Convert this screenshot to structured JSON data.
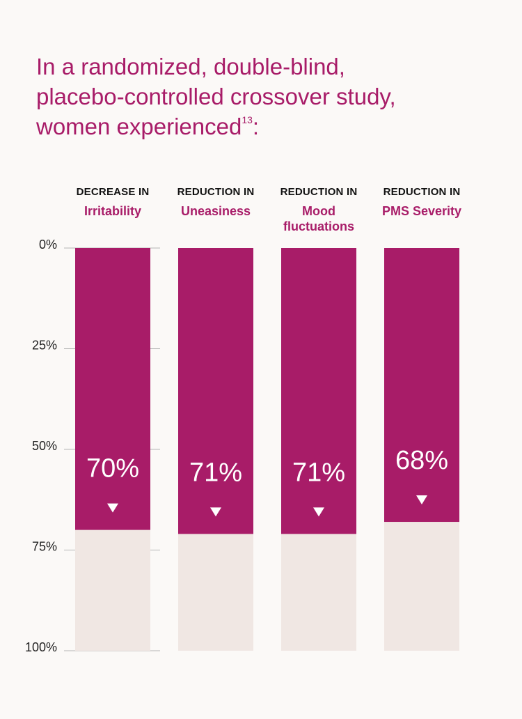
{
  "title": {
    "line1": "In a randomized, double-blind,",
    "line2": "placebo-controlled crossover study,",
    "line3_text": "women experienced",
    "line3_sup": "13",
    "line3_end": ":"
  },
  "colors": {
    "bar": "#a81c68",
    "track": "#f0e7e3",
    "background": "#fbf9f7",
    "axis": "#b5b5b5"
  },
  "chart_data": {
    "type": "bar",
    "orientation": "vertical",
    "y_axis_direction": "top-to-bottom",
    "ylim": [
      0,
      100
    ],
    "yticks": [
      "0%",
      "25%",
      "50%",
      "75%",
      "100%"
    ],
    "ytick_values": [
      0,
      25,
      50,
      75,
      100
    ],
    "categories": [
      {
        "kicker": "DECREASE IN",
        "name": "Irritability"
      },
      {
        "kicker": "REDUCTION IN",
        "name": "Uneasiness"
      },
      {
        "kicker": "REDUCTION IN",
        "name": "Mood fluctuations"
      },
      {
        "kicker": "REDUCTION IN",
        "name": "PMS Severity"
      }
    ],
    "values": [
      70,
      71,
      71,
      68
    ],
    "value_labels": [
      "70%",
      "71%",
      "71%",
      "68%"
    ],
    "markers": "down-triangle"
  }
}
